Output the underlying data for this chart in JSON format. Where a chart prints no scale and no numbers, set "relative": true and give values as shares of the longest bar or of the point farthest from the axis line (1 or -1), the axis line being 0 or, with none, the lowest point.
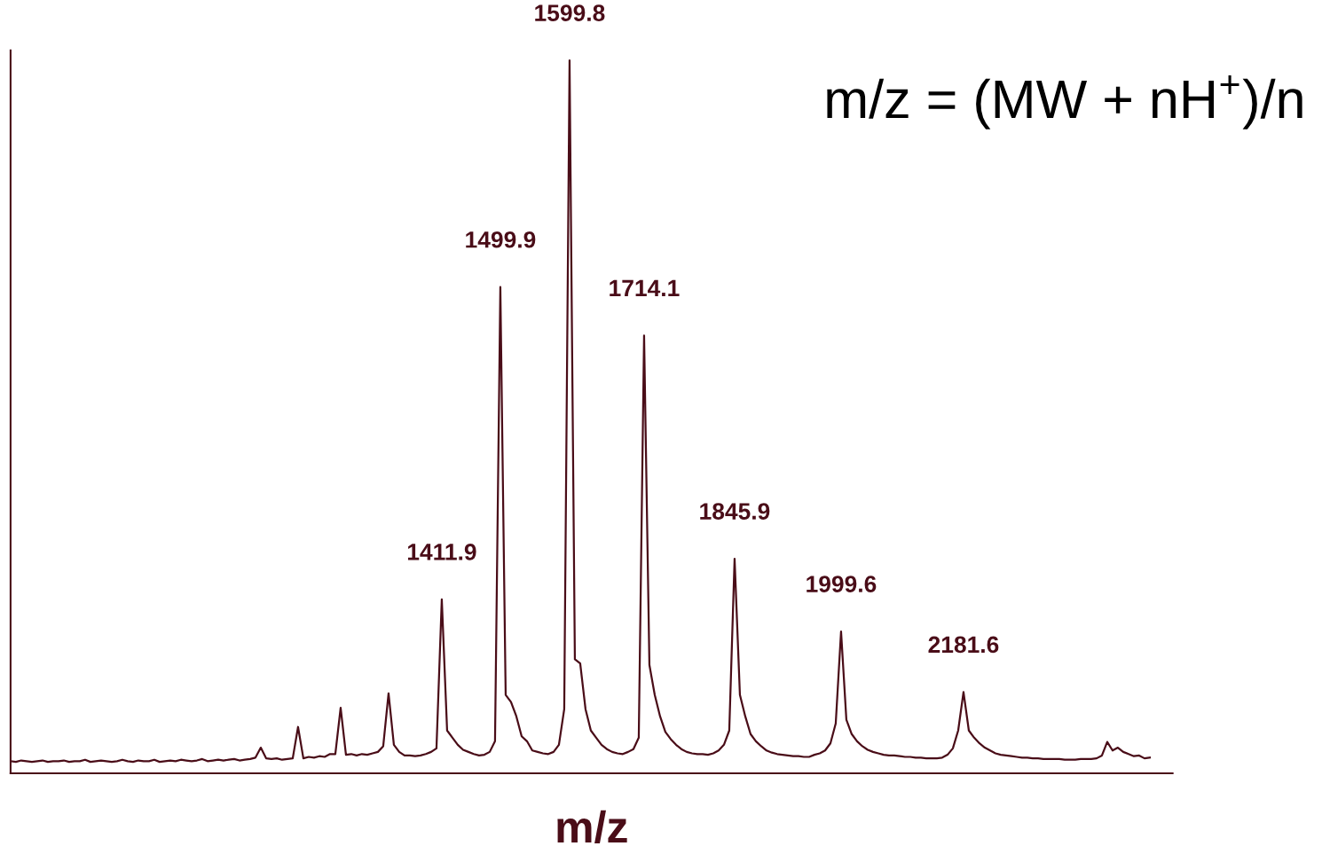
{
  "chart_data": {
    "type": "line",
    "relative": true,
    "xlabel": "m/z",
    "tick_labels": false,
    "legend": false,
    "marker": "none",
    "line_style": "solid",
    "categories": [
      null,
      null,
      null,
      null,
      null,
      null,
      null,
      null,
      null,
      null,
      null,
      null,
      null,
      null,
      null,
      null,
      null,
      null,
      null,
      null,
      null,
      null,
      null,
      null,
      null,
      null,
      null,
      null,
      null,
      null,
      null,
      null,
      null,
      null,
      null,
      null,
      null,
      null,
      null,
      null,
      null,
      null,
      null,
      null,
      null,
      null,
      null,
      null,
      null,
      null,
      null,
      null,
      null,
      null,
      null,
      null,
      null,
      null,
      null,
      null,
      null,
      null,
      null,
      null,
      null,
      null,
      null,
      null,
      null,
      null,
      null,
      null,
      null,
      null,
      null,
      null,
      null,
      null,
      null,
      null,
      null,
      null,
      null,
      null,
      null,
      null,
      null,
      null,
      null,
      null,
      null,
      null,
      null,
      null,
      null,
      null,
      null,
      null,
      null,
      null,
      null,
      null,
      null,
      null,
      null,
      null,
      null,
      null,
      null,
      null,
      null,
      null,
      null,
      null,
      null,
      null,
      null,
      null,
      null,
      null,
      null,
      null,
      null,
      null,
      null,
      null,
      null,
      null,
      null,
      null,
      null,
      null,
      null,
      null,
      null,
      null,
      null,
      null,
      null,
      null,
      null,
      null,
      null,
      null,
      null,
      null,
      null,
      null,
      null,
      null,
      null,
      null,
      null,
      null,
      null,
      null,
      null,
      null,
      null,
      null,
      null,
      null,
      null,
      null,
      null,
      null,
      null,
      null,
      null,
      null,
      null,
      null,
      null,
      null,
      null,
      null,
      null,
      null,
      null,
      null,
      null,
      null,
      null,
      null,
      null,
      null,
      null,
      null,
      null,
      null,
      null,
      null,
      null,
      null,
      null,
      null,
      null,
      null,
      null,
      null,
      null,
      null,
      null,
      null,
      null,
      null,
      null,
      null,
      null,
      null,
      null,
      null,
      null,
      null,
      null
    ],
    "series": [
      {
        "color": "#4a0d18",
        "values": [
          0.017,
          0.016,
          0.018,
          0.017,
          0.016,
          0.017,
          0.018,
          0.016,
          0.017,
          0.017,
          0.018,
          0.016,
          0.017,
          0.017,
          0.019,
          0.016,
          0.017,
          0.018,
          0.017,
          0.016,
          0.017,
          0.019,
          0.017,
          0.016,
          0.018,
          0.017,
          0.017,
          0.019,
          0.016,
          0.017,
          0.018,
          0.017,
          0.019,
          0.018,
          0.017,
          0.018,
          0.02,
          0.017,
          0.018,
          0.019,
          0.018,
          0.019,
          0.02,
          0.018,
          0.019,
          0.02,
          0.022,
          0.036,
          0.021,
          0.02,
          0.021,
          0.019,
          0.02,
          0.021,
          0.065,
          0.021,
          0.023,
          0.022,
          0.024,
          0.023,
          0.027,
          0.027,
          0.092,
          0.026,
          0.027,
          0.025,
          0.027,
          0.026,
          0.028,
          0.03,
          0.038,
          0.112,
          0.04,
          0.03,
          0.025,
          0.025,
          0.024,
          0.025,
          0.027,
          0.03,
          0.035,
          0.244,
          0.06,
          0.05,
          0.04,
          0.033,
          0.03,
          0.027,
          0.025,
          0.026,
          0.03,
          0.045,
          0.682,
          0.11,
          0.1,
          0.08,
          0.052,
          0.045,
          0.032,
          0.03,
          0.028,
          0.027,
          0.03,
          0.04,
          0.09,
          1.0,
          0.16,
          0.154,
          0.09,
          0.06,
          0.05,
          0.04,
          0.034,
          0.03,
          0.028,
          0.027,
          0.03,
          0.034,
          0.05,
          0.614,
          0.152,
          0.11,
          0.08,
          0.058,
          0.048,
          0.04,
          0.034,
          0.03,
          0.028,
          0.027,
          0.027,
          0.026,
          0.028,
          0.032,
          0.04,
          0.06,
          0.301,
          0.11,
          0.08,
          0.055,
          0.045,
          0.038,
          0.032,
          0.029,
          0.027,
          0.026,
          0.025,
          0.024,
          0.024,
          0.023,
          0.023,
          0.026,
          0.028,
          0.032,
          0.042,
          0.07,
          0.199,
          0.075,
          0.055,
          0.045,
          0.038,
          0.033,
          0.03,
          0.028,
          0.026,
          0.025,
          0.025,
          0.024,
          0.023,
          0.023,
          0.022,
          0.022,
          0.021,
          0.021,
          0.021,
          0.022,
          0.026,
          0.035,
          0.06,
          0.114,
          0.06,
          0.05,
          0.042,
          0.036,
          0.032,
          0.028,
          0.026,
          0.025,
          0.024,
          0.023,
          0.022,
          0.022,
          0.021,
          0.021,
          0.02,
          0.02,
          0.02,
          0.02,
          0.019,
          0.019,
          0.019,
          0.02,
          0.02,
          0.02,
          0.021,
          0.025,
          0.044,
          0.032,
          0.036,
          0.03,
          0.027,
          0.024,
          0.025,
          0.021,
          0.022
        ]
      }
    ],
    "annotations": [
      {
        "text": "1411.9",
        "y": 0.244
      },
      {
        "text": "1499.9",
        "y": 0.682
      },
      {
        "text": "1599.8",
        "y": 1.0
      },
      {
        "text": "1714.1",
        "y": 0.614
      },
      {
        "text": "1845.9",
        "y": 0.301
      },
      {
        "text": "1999.6",
        "y": 0.199
      },
      {
        "text": "2181.6",
        "y": 0.114
      },
      "m/z = (MW + nH$^{+}$)/n"
    ]
  }
}
